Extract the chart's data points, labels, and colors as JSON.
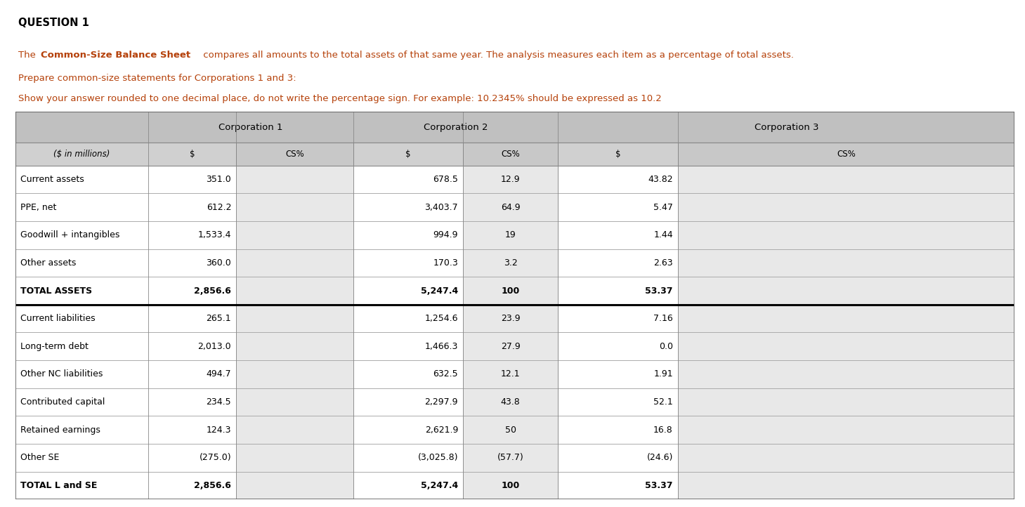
{
  "title": "QUESTION 1",
  "col_headers": [
    "Corporation 1",
    "Corporation 2",
    "Corporation 3"
  ],
  "rows": [
    {
      "label": "Current assets",
      "c1_val": "351.0",
      "c1_cs": "",
      "c2_val": "678.5",
      "c2_cs": "12.9",
      "c3_val": "43.82",
      "c3_cs": "",
      "bold": false,
      "thick_bottom": false
    },
    {
      "label": "PPE, net",
      "c1_val": "612.2",
      "c1_cs": "",
      "c2_val": "3,403.7",
      "c2_cs": "64.9",
      "c3_val": "5.47",
      "c3_cs": "",
      "bold": false,
      "thick_bottom": false
    },
    {
      "label": "Goodwill + intangibles",
      "c1_val": "1,533.4",
      "c1_cs": "",
      "c2_val": "994.9",
      "c2_cs": "19",
      "c3_val": "1.44",
      "c3_cs": "",
      "bold": false,
      "thick_bottom": false
    },
    {
      "label": "Other assets",
      "c1_val": "360.0",
      "c1_cs": "",
      "c2_val": "170.3",
      "c2_cs": "3.2",
      "c3_val": "2.63",
      "c3_cs": "",
      "bold": false,
      "thick_bottom": false
    },
    {
      "label": "TOTAL ASSETS",
      "c1_val": "2,856.6",
      "c1_cs": "",
      "c2_val": "5,247.4",
      "c2_cs": "100",
      "c3_val": "53.37",
      "c3_cs": "",
      "bold": true,
      "thick_bottom": true
    },
    {
      "label": "Current liabilities",
      "c1_val": "265.1",
      "c1_cs": "",
      "c2_val": "1,254.6",
      "c2_cs": "23.9",
      "c3_val": "7.16",
      "c3_cs": "",
      "bold": false,
      "thick_bottom": false
    },
    {
      "label": "Long-term debt",
      "c1_val": "2,013.0",
      "c1_cs": "",
      "c2_val": "1,466.3",
      "c2_cs": "27.9",
      "c3_val": "0.0",
      "c3_cs": "",
      "bold": false,
      "thick_bottom": false
    },
    {
      "label": "Other NC liabilities",
      "c1_val": "494.7",
      "c1_cs": "",
      "c2_val": "632.5",
      "c2_cs": "12.1",
      "c3_val": "1.91",
      "c3_cs": "",
      "bold": false,
      "thick_bottom": false
    },
    {
      "label": "Contributed capital",
      "c1_val": "234.5",
      "c1_cs": "",
      "c2_val": "2,297.9",
      "c2_cs": "43.8",
      "c3_val": "52.1",
      "c3_cs": "",
      "bold": false,
      "thick_bottom": false
    },
    {
      "label": "Retained earnings",
      "c1_val": "124.3",
      "c1_cs": "",
      "c2_val": "2,621.9",
      "c2_cs": "50",
      "c3_val": "16.8",
      "c3_cs": "",
      "bold": false,
      "thick_bottom": false
    },
    {
      "label": "Other SE",
      "c1_val": "(275.0)",
      "c1_cs": "",
      "c2_val": "(3,025.8)",
      "c2_cs": "(57.7)",
      "c3_val": "(24.6)",
      "c3_cs": "",
      "bold": false,
      "thick_bottom": false
    },
    {
      "label": "TOTAL L and SE",
      "c1_val": "2,856.6",
      "c1_cs": "",
      "c2_val": "5,247.4",
      "c2_cs": "100",
      "c3_val": "53.37",
      "c3_cs": "",
      "bold": true,
      "thick_bottom": false
    }
  ],
  "header_bg": "#c0c0c0",
  "subheader_bg": "#d0d0d0",
  "cs_bg": "#e0e0e0",
  "row_bg": "#ffffff",
  "text_color": "#000000",
  "orange_color": "#b5410a",
  "border_color": "#888888",
  "thick_border": "#000000"
}
